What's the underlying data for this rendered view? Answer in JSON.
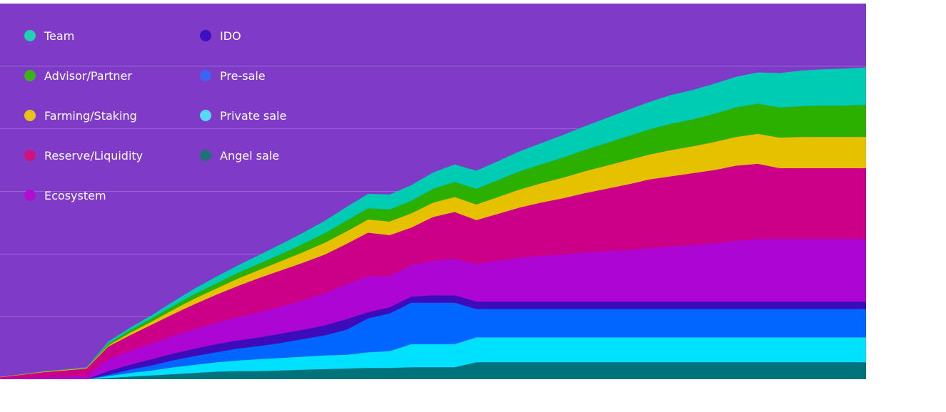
{
  "chart_data": {
    "type": "area",
    "stacked": true,
    "title": "",
    "xlabel": "",
    "ylabel": "",
    "grid": true,
    "legend_position": "top-left",
    "background_color": "#7f3bc8",
    "x": [
      0,
      1,
      2,
      3,
      4,
      5,
      6,
      7,
      8,
      9,
      10,
      11,
      12,
      13,
      14,
      15,
      16,
      17,
      18,
      19,
      20,
      21,
      22,
      23,
      24,
      25,
      26,
      27,
      28,
      29,
      30,
      31,
      32,
      33,
      34,
      35,
      36,
      37,
      38,
      39,
      40
    ],
    "ylim": [
      0,
      6
    ],
    "series": [
      {
        "name": "Angel sale",
        "color": "#00737a",
        "values": [
          0,
          0,
          0,
          0,
          0,
          0.02,
          0.04,
          0.06,
          0.08,
          0.1,
          0.12,
          0.13,
          0.13,
          0.14,
          0.15,
          0.16,
          0.17,
          0.18,
          0.18,
          0.19,
          0.19,
          0.19,
          0.27,
          0.27,
          0.27,
          0.27,
          0.27,
          0.27,
          0.27,
          0.27,
          0.27,
          0.27,
          0.27,
          0.27,
          0.27,
          0.27,
          0.27,
          0.27,
          0.27,
          0.27,
          0.27
        ]
      },
      {
        "name": "Private sale",
        "color": "#00e0ff",
        "values": [
          0,
          0,
          0,
          0,
          0,
          0.03,
          0.06,
          0.08,
          0.11,
          0.13,
          0.15,
          0.17,
          0.19,
          0.2,
          0.21,
          0.22,
          0.22,
          0.25,
          0.27,
          0.37,
          0.37,
          0.37,
          0.4,
          0.4,
          0.4,
          0.4,
          0.4,
          0.4,
          0.4,
          0.4,
          0.4,
          0.4,
          0.4,
          0.4,
          0.4,
          0.4,
          0.4,
          0.4,
          0.4,
          0.4,
          0.4
        ]
      },
      {
        "name": "Pre-sale",
        "color": "#0066ff",
        "values": [
          0,
          0,
          0,
          0,
          0,
          0.02,
          0.05,
          0.08,
          0.11,
          0.14,
          0.16,
          0.19,
          0.21,
          0.24,
          0.28,
          0.32,
          0.4,
          0.54,
          0.6,
          0.66,
          0.66,
          0.66,
          0.45,
          0.45,
          0.45,
          0.45,
          0.45,
          0.45,
          0.45,
          0.45,
          0.45,
          0.45,
          0.45,
          0.45,
          0.45,
          0.45,
          0.45,
          0.45,
          0.45,
          0.45,
          0.45
        ]
      },
      {
        "name": "IDO",
        "color": "#3d0cba",
        "values": [
          0,
          0,
          0,
          0,
          0,
          0.06,
          0.08,
          0.1,
          0.11,
          0.12,
          0.13,
          0.13,
          0.14,
          0.15,
          0.15,
          0.16,
          0.17,
          0.1,
          0.1,
          0.1,
          0.12,
          0.12,
          0.12,
          0.12,
          0.12,
          0.12,
          0.12,
          0.12,
          0.12,
          0.12,
          0.12,
          0.12,
          0.12,
          0.12,
          0.12,
          0.12,
          0.12,
          0.12,
          0.12,
          0.12,
          0.12
        ]
      },
      {
        "name": "Ecosystem",
        "color": "#ad05d3",
        "values": [
          0.01,
          0.02,
          0.03,
          0.04,
          0.05,
          0.19,
          0.22,
          0.25,
          0.28,
          0.31,
          0.34,
          0.37,
          0.4,
          0.43,
          0.47,
          0.51,
          0.56,
          0.57,
          0.5,
          0.5,
          0.55,
          0.58,
          0.6,
          0.65,
          0.7,
          0.73,
          0.75,
          0.78,
          0.8,
          0.82,
          0.85,
          0.88,
          0.9,
          0.93,
          0.97,
          1.0,
          1.0,
          1.0,
          1.0,
          1.0,
          1.0
        ]
      },
      {
        "name": "Reserve/Liquidity",
        "color": "#cc0088",
        "values": [
          0.02,
          0.05,
          0.08,
          0.1,
          0.12,
          0.2,
          0.25,
          0.3,
          0.35,
          0.4,
          0.45,
          0.5,
          0.55,
          0.58,
          0.6,
          0.62,
          0.64,
          0.7,
          0.65,
          0.6,
          0.7,
          0.75,
          0.7,
          0.75,
          0.8,
          0.85,
          0.9,
          0.95,
          1.0,
          1.05,
          1.1,
          1.12,
          1.15,
          1.17,
          1.2,
          1.2,
          1.13,
          1.13,
          1.13,
          1.13,
          1.13
        ]
      },
      {
        "name": "Farming/Staking",
        "color": "#e6c100",
        "values": [
          0.005,
          0.006,
          0.01,
          0.01,
          0.01,
          0.02,
          0.04,
          0.05,
          0.07,
          0.09,
          0.1,
          0.12,
          0.13,
          0.15,
          0.17,
          0.19,
          0.2,
          0.21,
          0.22,
          0.23,
          0.23,
          0.24,
          0.25,
          0.27,
          0.29,
          0.31,
          0.33,
          0.35,
          0.37,
          0.39,
          0.4,
          0.42,
          0.43,
          0.45,
          0.46,
          0.48,
          0.49,
          0.5,
          0.5,
          0.5,
          0.5
        ]
      },
      {
        "name": "Advisor/Partner",
        "color": "#2bb000",
        "values": [
          0.001,
          0.002,
          0.003,
          0.004,
          0.005,
          0.03,
          0.04,
          0.05,
          0.06,
          0.07,
          0.08,
          0.09,
          0.1,
          0.11,
          0.13,
          0.15,
          0.17,
          0.18,
          0.19,
          0.2,
          0.22,
          0.24,
          0.25,
          0.27,
          0.29,
          0.3,
          0.32,
          0.34,
          0.36,
          0.38,
          0.4,
          0.42,
          0.43,
          0.45,
          0.47,
          0.48,
          0.48,
          0.49,
          0.5,
          0.5,
          0.51
        ]
      },
      {
        "name": "Team",
        "color": "#00ccb4",
        "values": [
          0.001,
          0.002,
          0.003,
          0.004,
          0.005,
          0.03,
          0.04,
          0.05,
          0.07,
          0.09,
          0.11,
          0.12,
          0.14,
          0.16,
          0.18,
          0.2,
          0.22,
          0.23,
          0.24,
          0.25,
          0.26,
          0.28,
          0.29,
          0.3,
          0.32,
          0.34,
          0.36,
          0.38,
          0.4,
          0.42,
          0.44,
          0.46,
          0.47,
          0.48,
          0.49,
          0.5,
          0.55,
          0.57,
          0.58,
          0.59,
          0.6
        ]
      }
    ],
    "legend": [
      {
        "name": "Team",
        "color": "#1fd0b4"
      },
      {
        "name": "Advisor/Partner",
        "color": "#3cb21a"
      },
      {
        "name": "Farming/Staking",
        "color": "#e8c41a"
      },
      {
        "name": "Reserve/Liquidity",
        "color": "#d0117e"
      },
      {
        "name": "Ecosystem",
        "color": "#b00fd0"
      },
      {
        "name": "IDO",
        "color": "#3c0fc0"
      },
      {
        "name": "Pre-sale",
        "color": "#3c64f5"
      },
      {
        "name": "Private sale",
        "color": "#5ad7f5"
      },
      {
        "name": "Angel sale",
        "color": "#1f7278"
      }
    ]
  }
}
